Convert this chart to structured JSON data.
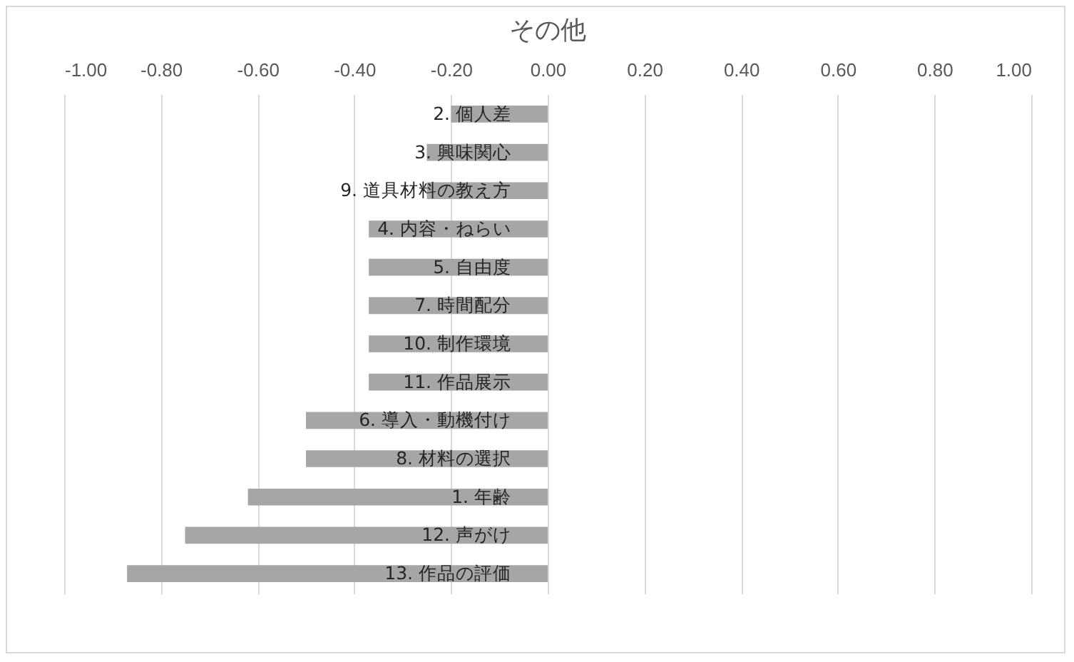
{
  "chart_data": {
    "type": "bar",
    "orientation": "horizontal",
    "title": "その他",
    "categories": [
      "2. 個人差",
      "3. 興味関心",
      "9. 道具材料の教え方",
      "4. 内容・ねらい",
      "5. 自由度",
      "7. 時間配分",
      "10. 制作環境",
      "11. 作品展示",
      "6. 導入・動機付け",
      "8. 材料の選択",
      "1. 年齢",
      "12. 声がけ",
      "13. 作品の評価"
    ],
    "values": [
      -0.2,
      -0.25,
      -0.25,
      -0.37,
      -0.37,
      -0.37,
      -0.37,
      -0.37,
      -0.5,
      -0.5,
      -0.62,
      -0.75,
      -0.87
    ],
    "color": "#a6a6a6",
    "xlim": [
      -1,
      1
    ],
    "xticks": [
      {
        "value": -1,
        "label": "-1.00"
      },
      {
        "value": -0.8,
        "label": "-0.80"
      },
      {
        "value": -0.6,
        "label": "-0.60"
      },
      {
        "value": -0.4,
        "label": "-0.40"
      },
      {
        "value": -0.2,
        "label": "-0.20"
      },
      {
        "value": 0,
        "label": "0.00"
      },
      {
        "value": 0.2,
        "label": "0.20"
      },
      {
        "value": 0.4,
        "label": "0.40"
      },
      {
        "value": 0.6,
        "label": "0.60"
      },
      {
        "value": 0.8,
        "label": "0.80"
      },
      {
        "value": 1,
        "label": "1.00"
      }
    ],
    "grid": true
  }
}
